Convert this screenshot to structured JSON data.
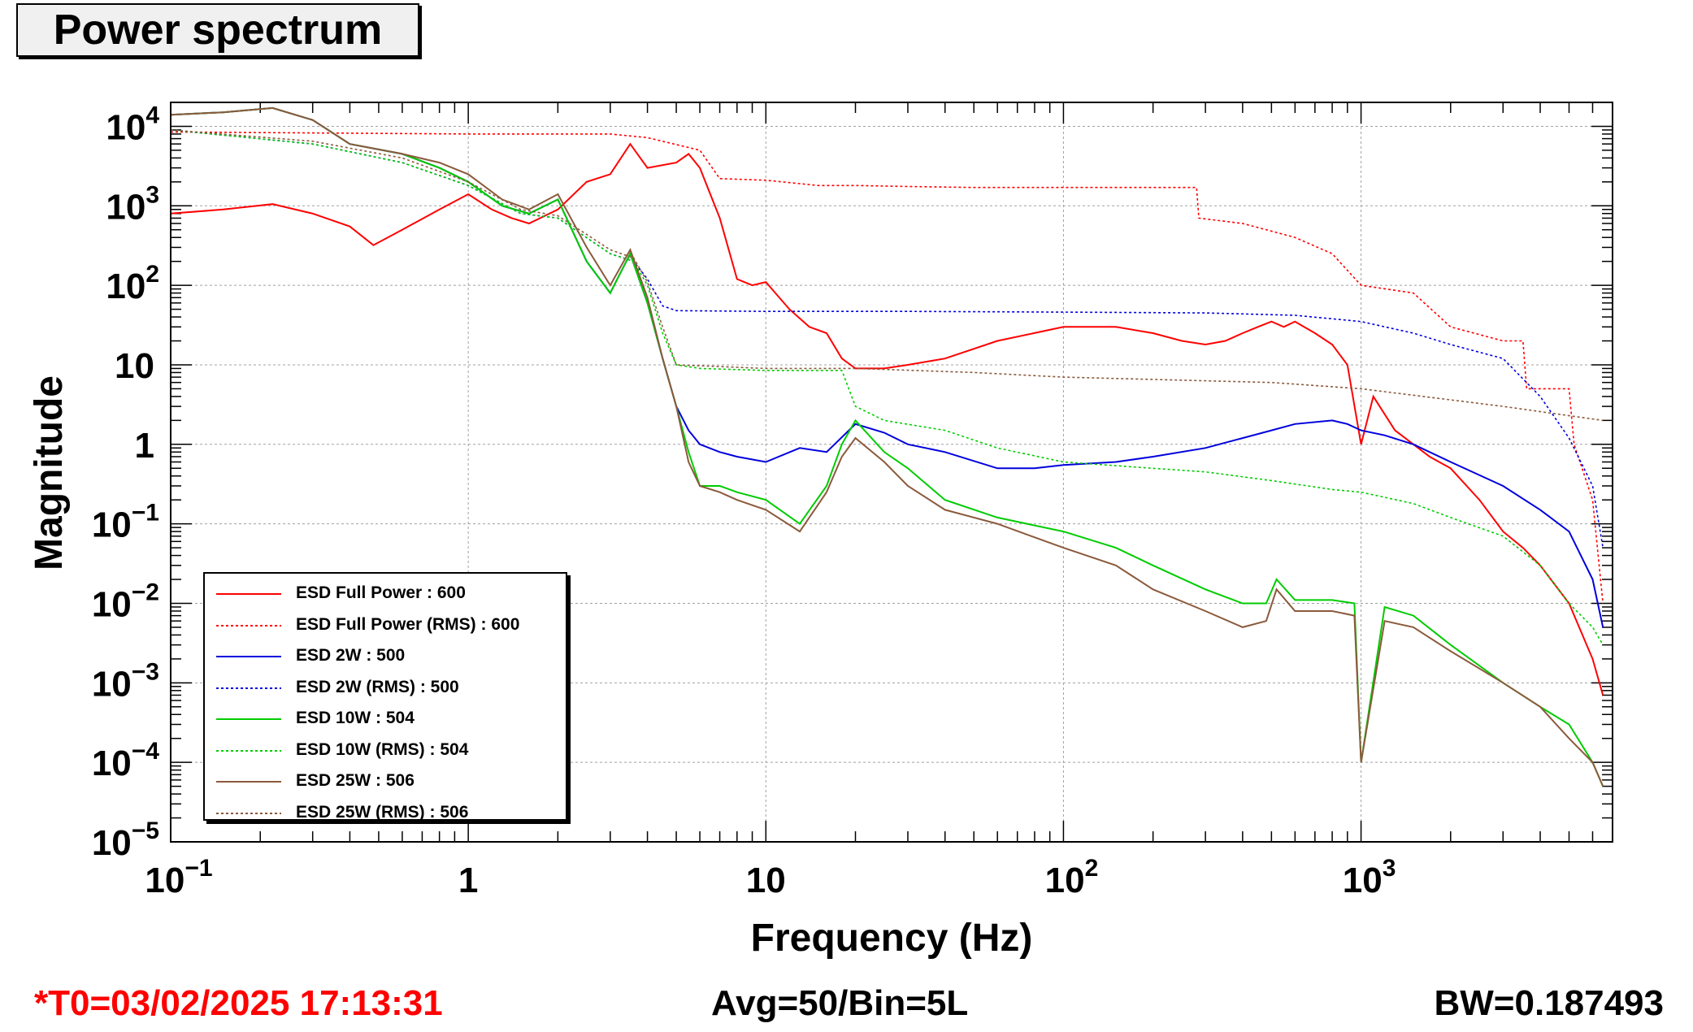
{
  "title": "Power spectrum",
  "footer": {
    "t0": "*T0=03/02/2025 17:13:31",
    "avg": "Avg=50/Bin=5L",
    "bw": "BW=0.187493",
    "t0_color": "#ff0000"
  },
  "chart_data": {
    "type": "line",
    "xlabel": "Frequency (Hz)",
    "ylabel": "Magnitude",
    "xscale": "log",
    "yscale": "log",
    "xlim": [
      0.1,
      7000
    ],
    "ylim": [
      1e-05,
      20000
    ],
    "grid": true,
    "legend_position": "bottom-left",
    "x_ticks": [
      {
        "value": 0.1,
        "base": "10",
        "exp": "−1"
      },
      {
        "value": 1,
        "base": "1",
        "exp": ""
      },
      {
        "value": 10,
        "base": "10",
        "exp": ""
      },
      {
        "value": 100,
        "base": "10",
        "exp": "2"
      },
      {
        "value": 1000,
        "base": "10",
        "exp": "3"
      }
    ],
    "y_ticks": [
      {
        "value": 10000,
        "base": "10",
        "exp": "4"
      },
      {
        "value": 1000,
        "base": "10",
        "exp": "3"
      },
      {
        "value": 100,
        "base": "10",
        "exp": "2"
      },
      {
        "value": 10,
        "base": "10",
        "exp": ""
      },
      {
        "value": 1,
        "base": "1",
        "exp": ""
      },
      {
        "value": 0.1,
        "base": "10",
        "exp": "−1"
      },
      {
        "value": 0.01,
        "base": "10",
        "exp": "−2"
      },
      {
        "value": 0.001,
        "base": "10",
        "exp": "−3"
      },
      {
        "value": 0.0001,
        "base": "10",
        "exp": "−4"
      },
      {
        "value": 1e-05,
        "base": "10",
        "exp": "−5"
      }
    ],
    "series": [
      {
        "name": "ESD Full Power : 600",
        "color": "#ff0000",
        "dashed": false,
        "x": [
          0.1,
          0.15,
          0.22,
          0.3,
          0.4,
          0.48,
          0.6,
          0.8,
          1.0,
          1.2,
          1.4,
          1.6,
          2.0,
          2.5,
          3.0,
          3.5,
          4.0,
          5.0,
          5.5,
          6.0,
          7.0,
          8.0,
          9.0,
          10,
          12,
          14,
          16,
          18,
          20,
          25,
          30,
          40,
          60,
          100,
          150,
          200,
          250,
          300,
          350,
          400,
          450,
          500,
          550,
          600,
          700,
          800,
          900,
          1000,
          1100,
          1300,
          1500,
          1700,
          2000,
          2500,
          3000,
          3500,
          4000,
          5000,
          6000,
          6500
        ],
        "y": [
          800,
          900,
          1050,
          800,
          550,
          320,
          500,
          900,
          1400,
          900,
          700,
          600,
          900,
          2000,
          2500,
          6000,
          3000,
          3500,
          4500,
          3000,
          700,
          120,
          100,
          110,
          50,
          30,
          25,
          12,
          9,
          9,
          10,
          12,
          20,
          30,
          30,
          25,
          20,
          18,
          20,
          25,
          30,
          35,
          30,
          35,
          25,
          18,
          10,
          1,
          4,
          1.5,
          1.0,
          0.7,
          0.5,
          0.2,
          0.08,
          0.05,
          0.03,
          0.01,
          0.002,
          0.0007
        ]
      },
      {
        "name": "ESD Full Power (RMS) : 600",
        "color": "#ff0000",
        "dashed": true,
        "x": [
          0.1,
          1,
          3,
          4,
          6,
          7,
          10,
          15,
          20,
          30,
          50,
          100,
          200,
          280,
          285,
          400,
          600,
          800,
          1000,
          1500,
          2000,
          3000,
          3500,
          3600,
          5000,
          5200,
          6000,
          6500
        ],
        "y": [
          8500,
          8000,
          8000,
          7200,
          5000,
          2200,
          2100,
          1800,
          1800,
          1750,
          1700,
          1700,
          1700,
          1700,
          700,
          600,
          400,
          250,
          100,
          80,
          30,
          20,
          20,
          5,
          5,
          1,
          0.2,
          0.01
        ]
      },
      {
        "name": "ESD 2W : 500",
        "color": "#0000dd",
        "dashed": false,
        "x": [
          0.1,
          0.15,
          0.22,
          0.3,
          0.4,
          0.6,
          0.8,
          1.0,
          1.3,
          1.6,
          2.0,
          2.5,
          3.0,
          3.5,
          4.0,
          4.5,
          5.0,
          5.5,
          6.0,
          7.0,
          8.0,
          10,
          13,
          16,
          20,
          25,
          30,
          40,
          60,
          80,
          100,
          150,
          200,
          300,
          400,
          500,
          600,
          800,
          900,
          1000,
          1200,
          1500,
          2000,
          3000,
          4000,
          5000,
          6000,
          6500
        ],
        "y": [
          14000,
          15000,
          17000,
          12000,
          6000,
          4500,
          3000,
          2000,
          1000,
          800,
          1200,
          200,
          80,
          250,
          60,
          12,
          3,
          1.5,
          1.0,
          0.8,
          0.7,
          0.6,
          0.9,
          0.8,
          1.8,
          1.4,
          1.0,
          0.8,
          0.5,
          0.5,
          0.55,
          0.6,
          0.7,
          0.9,
          1.2,
          1.5,
          1.8,
          2.0,
          1.8,
          1.5,
          1.3,
          1.0,
          0.6,
          0.3,
          0.15,
          0.08,
          0.02,
          0.005
        ]
      },
      {
        "name": "ESD 2W (RMS) : 500",
        "color": "#0000dd",
        "dashed": true,
        "x": [
          0.1,
          0.3,
          0.6,
          1.0,
          1.5,
          2.0,
          3.0,
          3.6,
          4.0,
          4.5,
          5,
          10,
          30,
          100,
          300,
          600,
          1000,
          1500,
          2000,
          3000,
          4000,
          5000,
          6000,
          6500
        ],
        "y": [
          9000,
          6000,
          3500,
          1800,
          800,
          700,
          250,
          200,
          120,
          55,
          48,
          47,
          47,
          46,
          45,
          42,
          35,
          25,
          18,
          12,
          4,
          1.2,
          0.3,
          0.05
        ]
      },
      {
        "name": "ESD 10W : 504",
        "color": "#00cc00",
        "dashed": false,
        "x": [
          0.1,
          0.15,
          0.22,
          0.3,
          0.4,
          0.6,
          0.8,
          1.0,
          1.3,
          1.6,
          2.0,
          2.5,
          3.0,
          3.5,
          4.0,
          4.5,
          5.0,
          5.5,
          6.0,
          7.0,
          8.0,
          10,
          13,
          16,
          18,
          20,
          25,
          30,
          40,
          60,
          100,
          150,
          200,
          300,
          400,
          480,
          520,
          600,
          800,
          950,
          1000,
          1200,
          1500,
          2000,
          3000,
          4000,
          5000,
          6000,
          6500
        ],
        "y": [
          14000,
          15000,
          17000,
          12000,
          6000,
          4500,
          3000,
          2000,
          1000,
          800,
          1200,
          200,
          80,
          250,
          60,
          12,
          3,
          0.8,
          0.3,
          0.3,
          0.25,
          0.2,
          0.1,
          0.3,
          1.0,
          2.0,
          0.8,
          0.5,
          0.2,
          0.12,
          0.08,
          0.05,
          0.03,
          0.015,
          0.01,
          0.01,
          0.02,
          0.011,
          0.011,
          0.01,
          0.0001,
          0.009,
          0.007,
          0.003,
          0.001,
          0.0005,
          0.0003,
          0.0001,
          5e-05
        ]
      },
      {
        "name": "ESD 10W (RMS) : 504",
        "color": "#00cc00",
        "dashed": true,
        "x": [
          0.1,
          0.3,
          0.6,
          1.0,
          1.5,
          2.0,
          3.0,
          3.6,
          4.0,
          4.5,
          5,
          6,
          10,
          18,
          20,
          25,
          40,
          60,
          100,
          200,
          300,
          500,
          800,
          1000,
          1500,
          2000,
          3000,
          4000,
          5000,
          6000,
          6500
        ],
        "y": [
          9000,
          6000,
          3500,
          1800,
          800,
          700,
          250,
          200,
          100,
          25,
          10,
          9,
          8.5,
          8.5,
          3,
          2,
          1.5,
          0.9,
          0.6,
          0.5,
          0.45,
          0.35,
          0.27,
          0.25,
          0.18,
          0.12,
          0.07,
          0.03,
          0.01,
          0.005,
          0.003
        ]
      },
      {
        "name": "ESD 25W : 506",
        "color": "#8b5a3c",
        "dashed": false,
        "x": [
          0.1,
          0.15,
          0.22,
          0.3,
          0.4,
          0.6,
          0.8,
          1.0,
          1.3,
          1.6,
          2.0,
          2.5,
          3.0,
          3.5,
          4.0,
          4.5,
          5.0,
          5.5,
          6.0,
          7.0,
          8.0,
          10,
          13,
          16,
          18,
          20,
          25,
          30,
          40,
          60,
          100,
          150,
          200,
          300,
          400,
          480,
          520,
          600,
          800,
          950,
          1000,
          1200,
          1500,
          2000,
          3000,
          4000,
          5000,
          6000,
          6500
        ],
        "y": [
          14000,
          15000,
          17000,
          12000,
          6000,
          4500,
          3500,
          2500,
          1200,
          900,
          1400,
          300,
          100,
          280,
          70,
          12,
          3,
          0.6,
          0.3,
          0.25,
          0.2,
          0.15,
          0.08,
          0.25,
          0.7,
          1.2,
          0.6,
          0.3,
          0.15,
          0.1,
          0.05,
          0.03,
          0.015,
          0.008,
          0.005,
          0.006,
          0.015,
          0.008,
          0.008,
          0.007,
          0.0001,
          0.006,
          0.005,
          0.0025,
          0.001,
          0.0005,
          0.0002,
          0.0001,
          5e-05
        ]
      },
      {
        "name": "ESD 25W (RMS) : 506",
        "color": "#8b5a3c",
        "dashed": true,
        "x": [
          0.1,
          0.3,
          0.6,
          1.0,
          1.5,
          2.0,
          3.0,
          3.6,
          4.0,
          4.5,
          5,
          10,
          20,
          50,
          100,
          500,
          1000,
          3000,
          6500
        ],
        "y": [
          9000,
          6500,
          4000,
          2000,
          900,
          750,
          280,
          220,
          110,
          30,
          10,
          9,
          9,
          8,
          7,
          6,
          5,
          3,
          2
        ]
      }
    ]
  }
}
